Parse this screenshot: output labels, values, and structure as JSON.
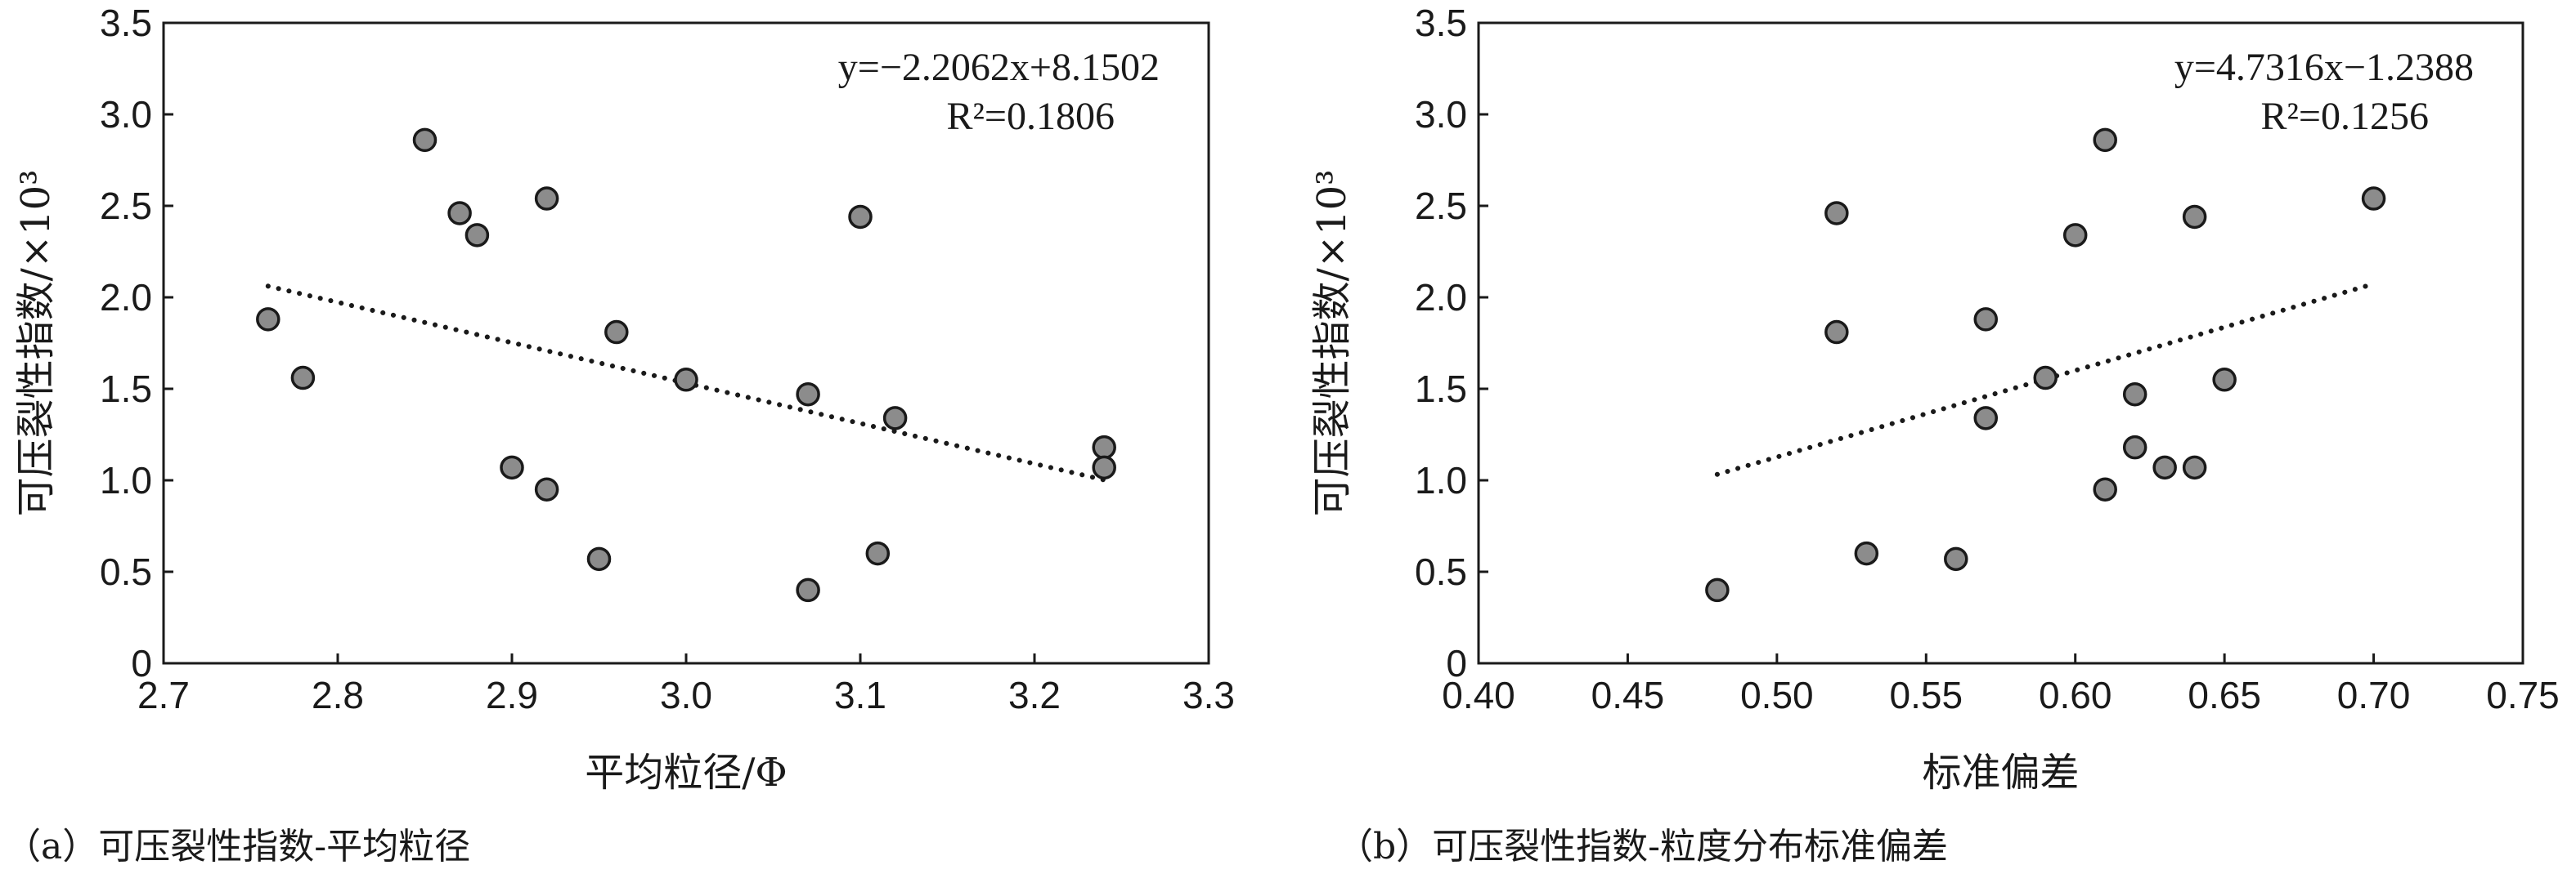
{
  "chart_data": [
    {
      "type": "scatter",
      "caption": "（a）可压裂性指数-平均粒径",
      "xlabel": "平均粒径/Φ",
      "ylabel": "可压裂性指数/×10³",
      "xlim": [
        2.7,
        3.3
      ],
      "ylim": [
        0,
        3.5
      ],
      "xticks": [
        "2.7",
        "2.8",
        "2.9",
        "3.0",
        "3.1",
        "3.2",
        "3.3"
      ],
      "yticks": [
        "0",
        "0.5",
        "1.0",
        "1.5",
        "2.0",
        "2.5",
        "3.0",
        "3.5"
      ],
      "equation": "y=−2.2062x+8.1502",
      "r2": "R²=0.1806",
      "trend": {
        "slope": -2.2062,
        "intercept": 8.1502,
        "x_range": [
          2.76,
          3.24
        ]
      },
      "points": [
        {
          "x": 2.76,
          "y": 1.88
        },
        {
          "x": 2.78,
          "y": 1.56
        },
        {
          "x": 2.85,
          "y": 2.86
        },
        {
          "x": 2.87,
          "y": 2.46
        },
        {
          "x": 2.88,
          "y": 2.34
        },
        {
          "x": 2.9,
          "y": 1.07
        },
        {
          "x": 2.92,
          "y": 2.54
        },
        {
          "x": 2.92,
          "y": 0.95
        },
        {
          "x": 2.95,
          "y": 0.57
        },
        {
          "x": 2.96,
          "y": 1.81
        },
        {
          "x": 3.0,
          "y": 1.55
        },
        {
          "x": 3.07,
          "y": 1.47
        },
        {
          "x": 3.07,
          "y": 0.4
        },
        {
          "x": 3.1,
          "y": 2.44
        },
        {
          "x": 3.11,
          "y": 0.6
        },
        {
          "x": 3.12,
          "y": 1.34
        },
        {
          "x": 3.24,
          "y": 1.18
        },
        {
          "x": 3.24,
          "y": 1.07
        }
      ],
      "grid": false
    },
    {
      "type": "scatter",
      "caption": "（b）可压裂性指数-粒度分布标准偏差",
      "xlabel": "标准偏差",
      "ylabel": "可压裂性指数/×10³",
      "xlim": [
        0.4,
        0.75
      ],
      "ylim": [
        0,
        3.5
      ],
      "xticks": [
        "0.40",
        "0.45",
        "0.50",
        "0.55",
        "0.60",
        "0.65",
        "0.70",
        "0.75"
      ],
      "yticks": [
        "0",
        "0.5",
        "1.0",
        "1.5",
        "2.0",
        "2.5",
        "3.0",
        "3.5"
      ],
      "equation": "y=4.7316x−1.2388",
      "r2": "R²=0.1256",
      "trend": {
        "slope": 4.7316,
        "intercept": -1.2388,
        "x_range": [
          0.48,
          0.7
        ]
      },
      "points": [
        {
          "x": 0.48,
          "y": 0.4
        },
        {
          "x": 0.52,
          "y": 2.46
        },
        {
          "x": 0.52,
          "y": 1.81
        },
        {
          "x": 0.53,
          "y": 0.6
        },
        {
          "x": 0.56,
          "y": 0.57
        },
        {
          "x": 0.57,
          "y": 1.88
        },
        {
          "x": 0.57,
          "y": 1.34
        },
        {
          "x": 0.59,
          "y": 1.56
        },
        {
          "x": 0.6,
          "y": 2.34
        },
        {
          "x": 0.61,
          "y": 2.86
        },
        {
          "x": 0.61,
          "y": 0.95
        },
        {
          "x": 0.62,
          "y": 1.47
        },
        {
          "x": 0.62,
          "y": 1.18
        },
        {
          "x": 0.63,
          "y": 1.07
        },
        {
          "x": 0.64,
          "y": 2.44
        },
        {
          "x": 0.64,
          "y": 1.07
        },
        {
          "x": 0.65,
          "y": 1.55
        },
        {
          "x": 0.7,
          "y": 2.54
        }
      ],
      "grid": false
    }
  ]
}
